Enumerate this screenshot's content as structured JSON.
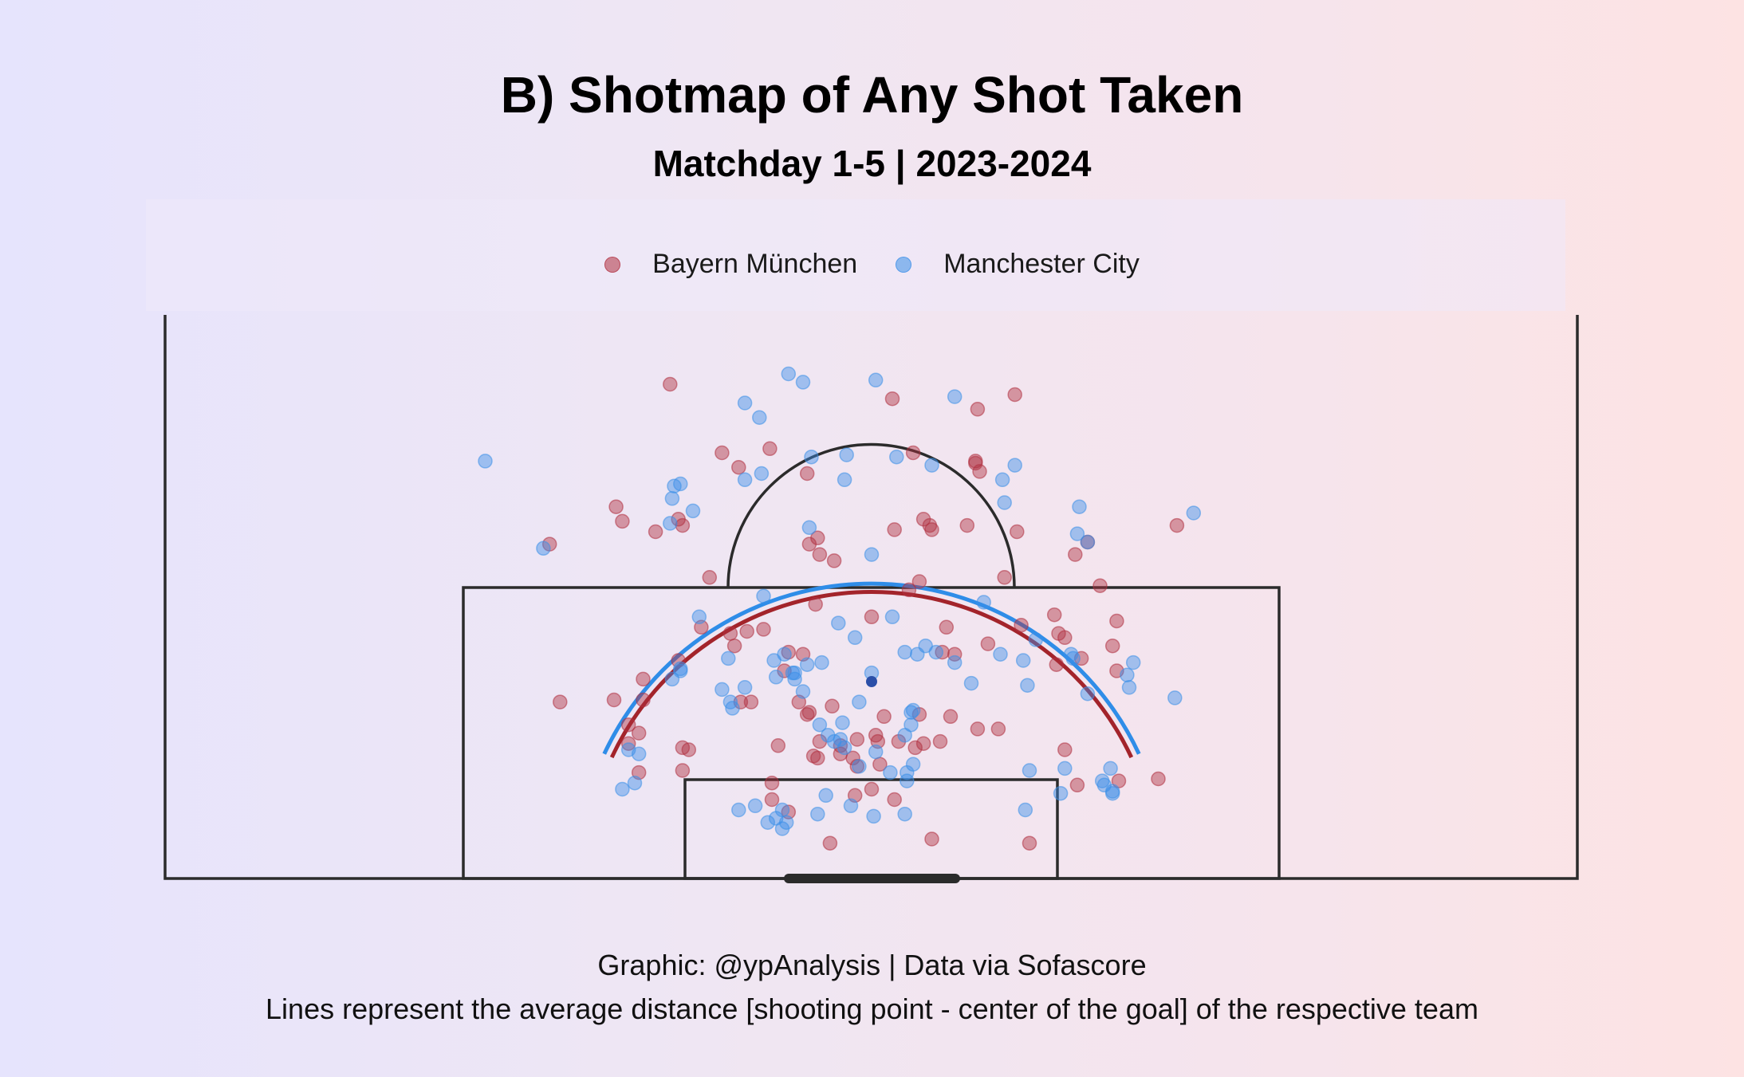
{
  "title": "B) Shotmap of Any Shot Taken",
  "subtitle": "Matchday 1-5 | 2023-2024",
  "legend": [
    {
      "name": "Bayern München",
      "color": "#b03040"
    },
    {
      "name": "Manchester City",
      "color": "#3b8fe8"
    }
  ],
  "caption": {
    "line1": "Graphic: @ypAnalysis | Data via Sofascore",
    "line2": "Lines represent the average distance [shooting point - center of the goal] of the respective team"
  },
  "colors": {
    "bayern": "#b03040",
    "city": "#3b8fe8",
    "pitch_lines": "#2b2b2b",
    "bayern_line": "#a3242b",
    "city_line": "#2f8de8"
  },
  "chart_data": {
    "type": "scatter",
    "x_unit": "meters from goal center (left negative)",
    "y_unit": "meters from goal line",
    "xlim": [
      -34,
      34
    ],
    "ylim": [
      0,
      27.2
    ],
    "average_distance": {
      "Bayern München": 13.8,
      "Manchester City": 14.2
    },
    "series": [
      {
        "name": "Bayern München",
        "color": "#b03040",
        "points": [
          [
            -9.7,
            23.8
          ],
          [
            6.9,
            23.3
          ],
          [
            5.1,
            22.6
          ],
          [
            5.0,
            20.1
          ],
          [
            -7.2,
            20.5
          ],
          [
            -4.9,
            20.7
          ],
          [
            1.0,
            23.1
          ],
          [
            2.0,
            20.5
          ],
          [
            5.0,
            20.0
          ],
          [
            5.2,
            19.6
          ],
          [
            -3.1,
            19.5
          ],
          [
            -6.4,
            19.8
          ],
          [
            2.5,
            17.3
          ],
          [
            2.8,
            17.0
          ],
          [
            4.6,
            17.0
          ],
          [
            -12.3,
            17.9
          ],
          [
            -12.0,
            17.2
          ],
          [
            -9.3,
            17.3
          ],
          [
            -9.1,
            17.0
          ],
          [
            -10.4,
            16.7
          ],
          [
            -15.5,
            16.1
          ],
          [
            1.1,
            16.8
          ],
          [
            2.9,
            16.8
          ],
          [
            -2.6,
            16.4
          ],
          [
            -2.5,
            15.6
          ],
          [
            -3.0,
            16.1
          ],
          [
            -1.8,
            15.3
          ],
          [
            -7.8,
            14.5
          ],
          [
            7.0,
            16.7
          ],
          [
            10.4,
            16.2
          ],
          [
            14.7,
            17.0
          ],
          [
            9.8,
            15.6
          ],
          [
            2.3,
            14.3
          ],
          [
            1.8,
            13.9
          ],
          [
            -2.7,
            13.2
          ],
          [
            0.0,
            12.6
          ],
          [
            -8.2,
            12.1
          ],
          [
            -6.8,
            11.8
          ],
          [
            -6.0,
            11.9
          ],
          [
            -6.6,
            11.2
          ],
          [
            -4.0,
            10.9
          ],
          [
            -4.2,
            10.0
          ],
          [
            -3.3,
            10.8
          ],
          [
            3.4,
            10.9
          ],
          [
            7.2,
            12.2
          ],
          [
            5.6,
            11.3
          ],
          [
            -3.1,
            7.9
          ],
          [
            -9.3,
            10.5
          ],
          [
            -11.0,
            8.6
          ],
          [
            10.1,
            10.6
          ],
          [
            9.0,
            11.8
          ],
          [
            9.3,
            11.6
          ],
          [
            11.8,
            12.4
          ],
          [
            11.6,
            11.2
          ],
          [
            11.8,
            10.0
          ],
          [
            8.9,
            10.3
          ],
          [
            -15.0,
            8.5
          ],
          [
            -12.4,
            8.6
          ],
          [
            -11.0,
            9.6
          ],
          [
            -6.3,
            8.5
          ],
          [
            -5.8,
            8.5
          ],
          [
            -3.5,
            8.5
          ],
          [
            -3.0,
            8.0
          ],
          [
            -1.9,
            8.3
          ],
          [
            0.6,
            7.8
          ],
          [
            2.3,
            7.9
          ],
          [
            3.8,
            7.8
          ],
          [
            5.1,
            7.2
          ],
          [
            6.1,
            7.2
          ],
          [
            -11.7,
            7.4
          ],
          [
            -11.2,
            7.0
          ],
          [
            -11.7,
            6.5
          ],
          [
            -8.8,
            6.2
          ],
          [
            -4.5,
            6.4
          ],
          [
            -2.5,
            6.6
          ],
          [
            -1.5,
            6.4
          ],
          [
            -0.7,
            6.7
          ],
          [
            0.2,
            6.9
          ],
          [
            0.3,
            6.6
          ],
          [
            1.3,
            6.6
          ],
          [
            2.1,
            6.3
          ],
          [
            2.5,
            6.5
          ],
          [
            3.3,
            6.6
          ],
          [
            -9.1,
            6.3
          ],
          [
            -1.5,
            6.0
          ],
          [
            -0.9,
            5.8
          ],
          [
            -2.6,
            5.8
          ],
          [
            -2.8,
            5.9
          ],
          [
            -0.7,
            5.4
          ],
          [
            0.4,
            5.5
          ],
          [
            9.3,
            6.2
          ],
          [
            -11.2,
            5.1
          ],
          [
            -9.1,
            5.2
          ],
          [
            -4.8,
            4.6
          ],
          [
            0.0,
            4.3
          ],
          [
            -4.8,
            3.8
          ],
          [
            -4.0,
            3.2
          ],
          [
            -2.0,
            1.7
          ],
          [
            2.9,
            1.9
          ],
          [
            7.6,
            1.7
          ],
          [
            9.9,
            4.5
          ],
          [
            11.9,
            4.7
          ],
          [
            13.8,
            4.8
          ],
          [
            -0.8,
            4.0
          ],
          [
            1.1,
            3.8
          ],
          [
            4.0,
            10.8
          ],
          [
            6.4,
            14.5
          ],
          [
            3.6,
            12.1
          ],
          [
            -5.2,
            12.0
          ],
          [
            11.0,
            14.1
          ],
          [
            8.8,
            12.7
          ]
        ]
      },
      {
        "name": "Manchester City",
        "color": "#3b8fe8",
        "points": [
          [
            -4.0,
            24.3
          ],
          [
            -3.3,
            23.9
          ],
          [
            0.2,
            24.0
          ],
          [
            4.0,
            23.2
          ],
          [
            -6.1,
            22.9
          ],
          [
            -5.4,
            22.2
          ],
          [
            -2.9,
            20.3
          ],
          [
            -1.2,
            20.4
          ],
          [
            1.2,
            20.3
          ],
          [
            2.9,
            19.9
          ],
          [
            6.9,
            19.9
          ],
          [
            -5.3,
            19.5
          ],
          [
            -6.1,
            19.2
          ],
          [
            6.3,
            19.2
          ],
          [
            -18.6,
            20.1
          ],
          [
            -9.2,
            19.0
          ],
          [
            -9.5,
            18.9
          ],
          [
            -9.6,
            18.3
          ],
          [
            -8.6,
            17.7
          ],
          [
            -9.7,
            17.1
          ],
          [
            -3.0,
            16.9
          ],
          [
            -1.3,
            19.2
          ],
          [
            6.4,
            18.1
          ],
          [
            10.0,
            17.9
          ],
          [
            9.9,
            16.6
          ],
          [
            -15.8,
            15.9
          ],
          [
            0.0,
            15.6
          ],
          [
            10.4,
            16.2
          ],
          [
            15.5,
            17.6
          ],
          [
            -8.3,
            12.6
          ],
          [
            -5.2,
            13.6
          ],
          [
            -1.6,
            12.3
          ],
          [
            1.0,
            12.6
          ],
          [
            -0.8,
            11.6
          ],
          [
            2.6,
            11.2
          ],
          [
            3.1,
            10.9
          ],
          [
            -4.2,
            10.8
          ],
          [
            -3.1,
            10.3
          ],
          [
            -2.4,
            10.4
          ],
          [
            -3.8,
            9.9
          ],
          [
            -3.7,
            9.6
          ],
          [
            -3.3,
            9.0
          ],
          [
            -6.8,
            8.5
          ],
          [
            -9.6,
            9.6
          ],
          [
            -6.1,
            9.2
          ],
          [
            -6.7,
            8.2
          ],
          [
            0.0,
            9.9
          ],
          [
            -0.6,
            8.5
          ],
          [
            1.9,
            8.0
          ],
          [
            2.0,
            8.1
          ],
          [
            4.0,
            10.4
          ],
          [
            4.8,
            9.4
          ],
          [
            6.2,
            10.8
          ],
          [
            7.9,
            11.5
          ],
          [
            9.6,
            10.8
          ],
          [
            9.7,
            10.6
          ],
          [
            7.5,
            9.3
          ],
          [
            10.4,
            8.9
          ],
          [
            12.3,
            9.8
          ],
          [
            12.6,
            10.4
          ],
          [
            12.4,
            9.2
          ],
          [
            14.6,
            8.7
          ],
          [
            -9.2,
            10.0
          ],
          [
            -9.2,
            10.1
          ],
          [
            -7.2,
            9.1
          ],
          [
            -2.5,
            7.4
          ],
          [
            -1.4,
            7.5
          ],
          [
            1.9,
            7.4
          ],
          [
            -2.1,
            6.9
          ],
          [
            -1.5,
            6.7
          ],
          [
            -1.3,
            6.3
          ],
          [
            -0.6,
            5.4
          ],
          [
            0.2,
            6.1
          ],
          [
            1.6,
            6.9
          ],
          [
            1.7,
            5.1
          ],
          [
            1.7,
            4.7
          ],
          [
            2.0,
            5.5
          ],
          [
            7.6,
            5.2
          ],
          [
            9.3,
            5.3
          ],
          [
            11.5,
            5.3
          ],
          [
            -11.7,
            6.2
          ],
          [
            -11.4,
            4.6
          ],
          [
            -6.4,
            3.3
          ],
          [
            -5.6,
            3.5
          ],
          [
            -5.0,
            2.7
          ],
          [
            -2.6,
            3.1
          ],
          [
            -2.2,
            4.0
          ],
          [
            -1.0,
            3.5
          ],
          [
            0.1,
            3.0
          ],
          [
            1.6,
            3.1
          ],
          [
            -4.3,
            3.3
          ],
          [
            -4.6,
            2.9
          ],
          [
            -4.3,
            2.4
          ],
          [
            -4.1,
            2.7
          ],
          [
            7.4,
            3.3
          ],
          [
            9.1,
            4.1
          ],
          [
            -12.0,
            4.3
          ],
          [
            -11.2,
            6.0
          ],
          [
            11.1,
            4.7
          ],
          [
            11.6,
            4.1
          ],
          [
            11.2,
            4.5
          ],
          [
            11.6,
            4.2
          ],
          [
            -6.9,
            10.6
          ],
          [
            -4.7,
            10.5
          ],
          [
            -4.6,
            9.7
          ],
          [
            -3.7,
            9.9
          ],
          [
            -1.8,
            6.6
          ],
          [
            0.9,
            5.1
          ],
          [
            5.4,
            13.3
          ],
          [
            7.3,
            10.5
          ],
          [
            1.6,
            10.9
          ],
          [
            2.2,
            10.8
          ]
        ]
      }
    ]
  }
}
